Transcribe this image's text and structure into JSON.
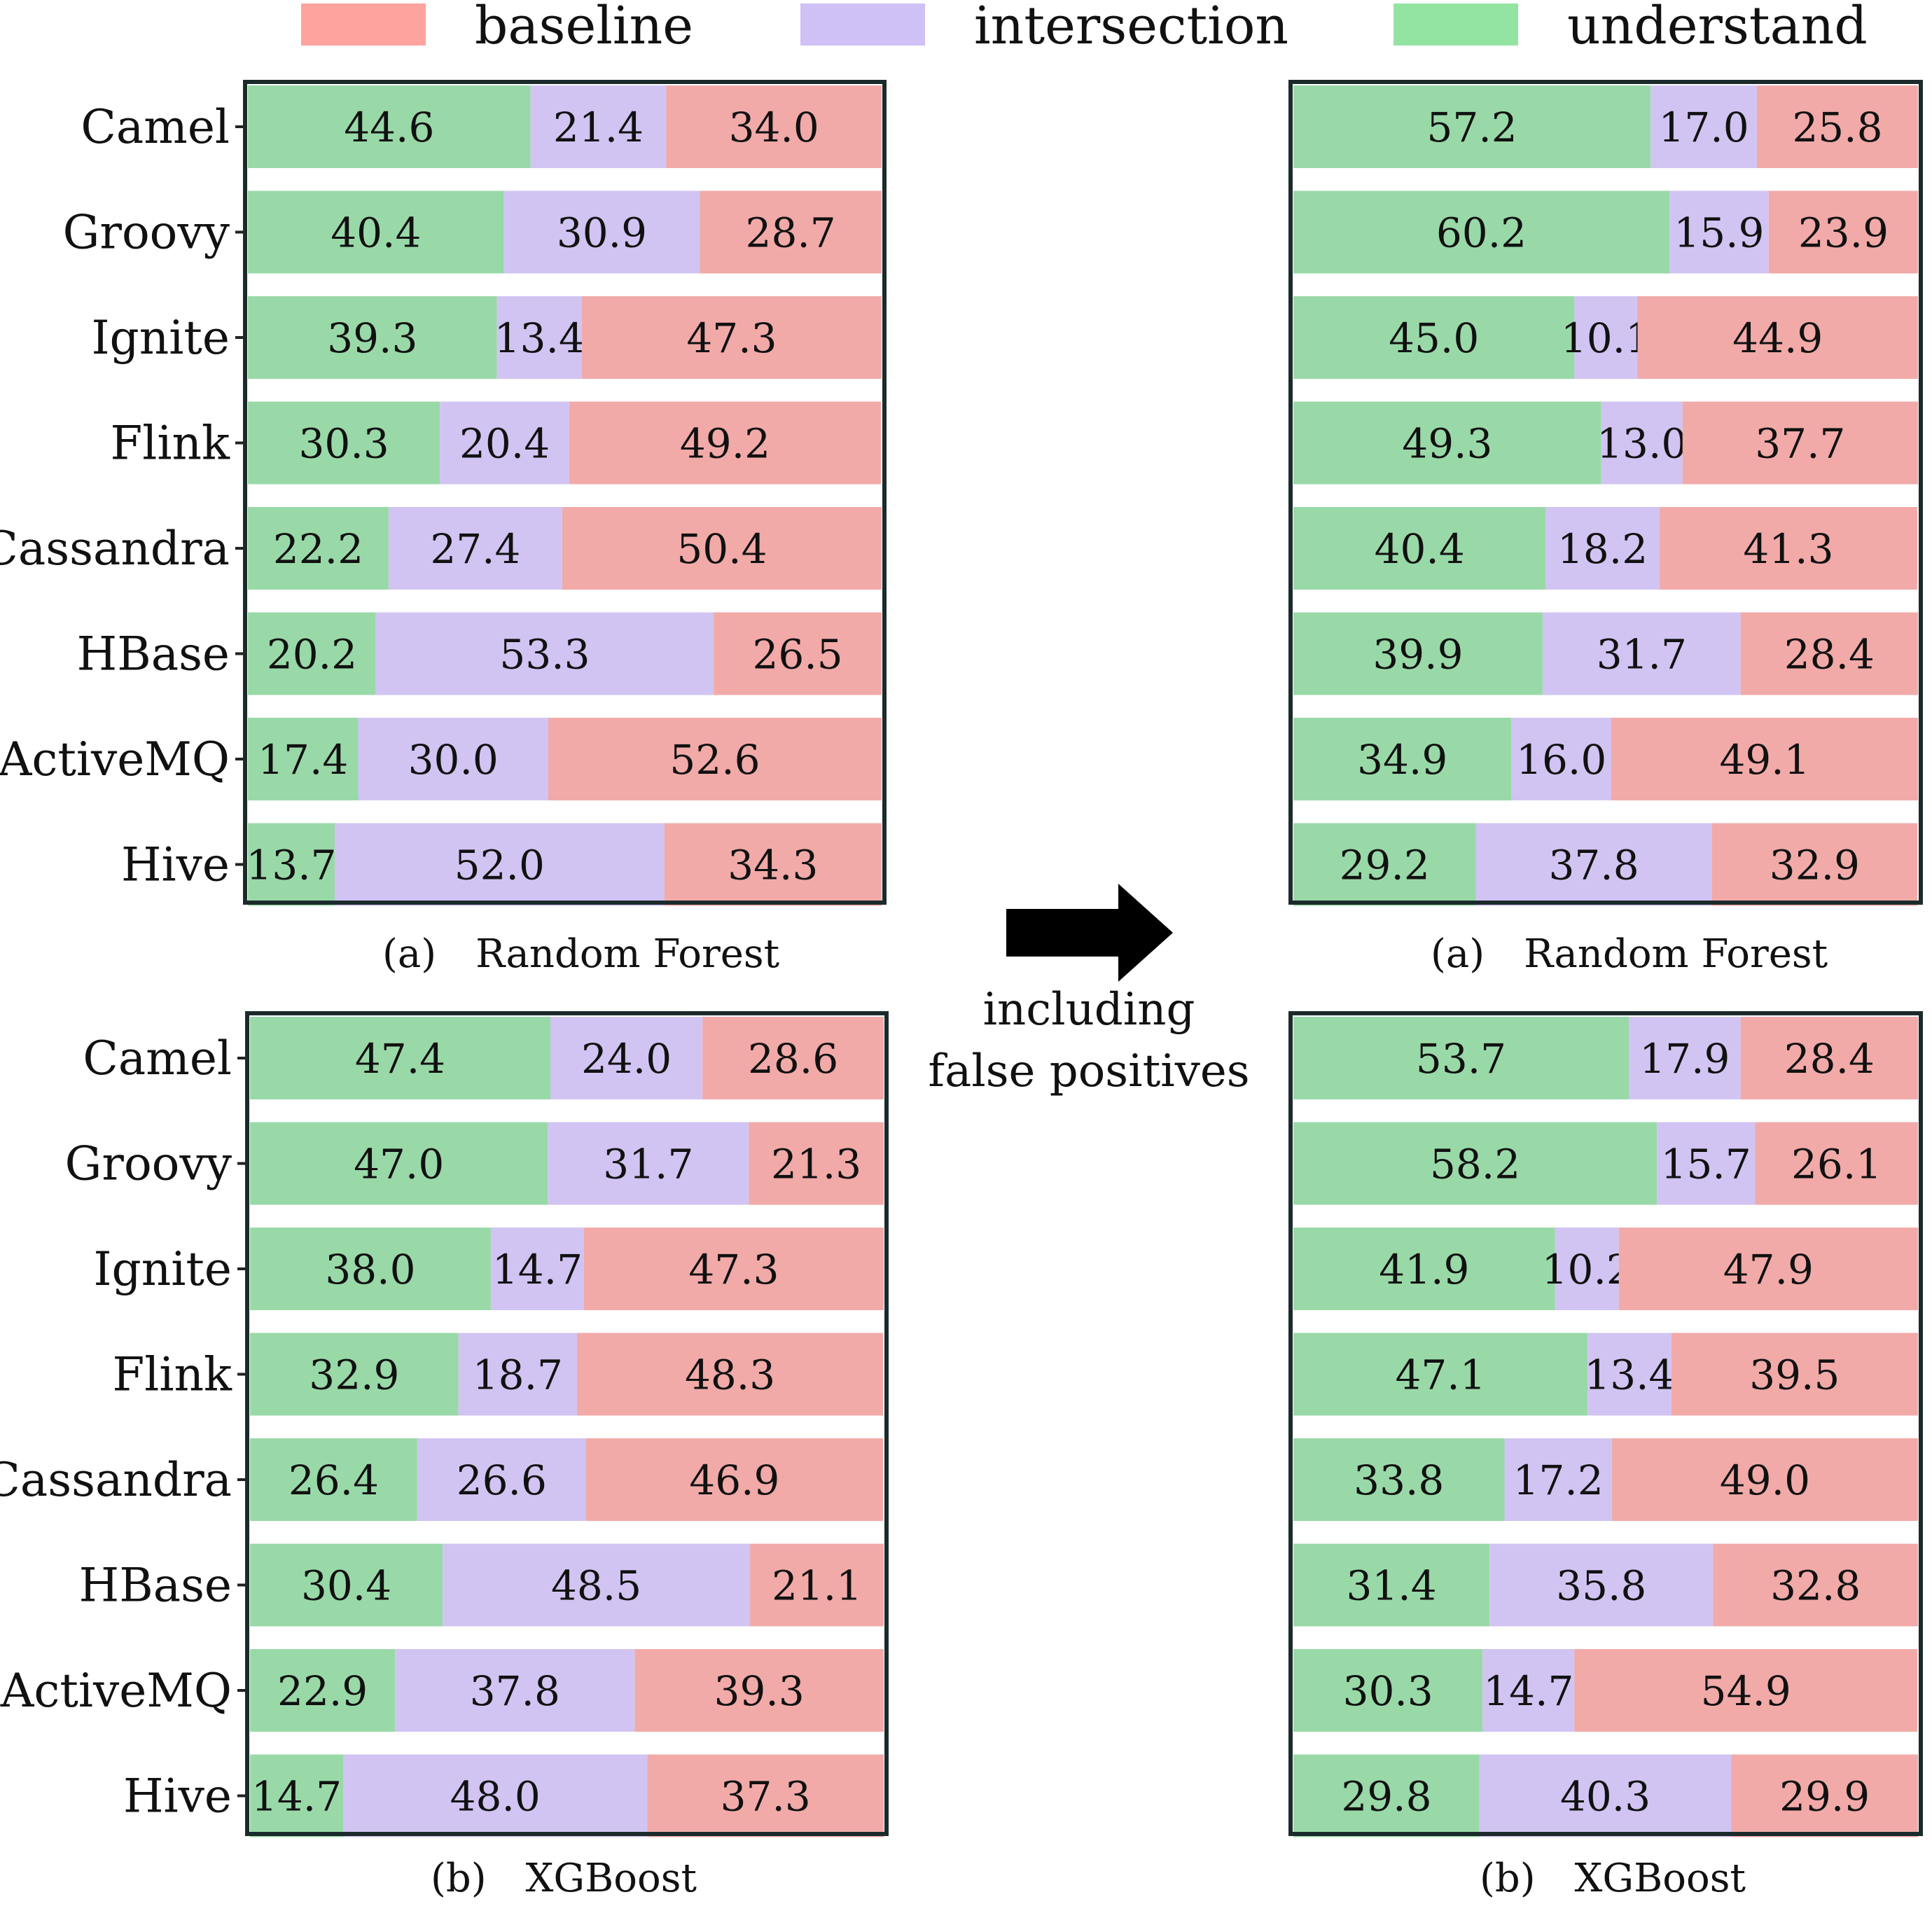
{
  "legend": {
    "items": [
      {
        "label": "baseline",
        "color": "#ffa39e"
      },
      {
        "label": "intersection",
        "color": "#cfc0f5"
      },
      {
        "label": "understand",
        "color": "#93e4a2"
      }
    ]
  },
  "colors": {
    "understand": "#99d9a8",
    "intersection": "#d1c4f2",
    "baseline": "#f1aaa8",
    "frame": "#1b2b2b"
  },
  "annotation": {
    "line1": "including",
    "line2": "false positives",
    "arrow_icon": "right-arrow-icon"
  },
  "chart_data": [
    {
      "type": "bar",
      "orientation": "horizontal",
      "stacked": true,
      "normalized_percent": true,
      "caption_tag": "(a)",
      "caption_title": "Random Forest",
      "categories": [
        "Camel",
        "Groovy",
        "Ignite",
        "Flink",
        "Cassandra",
        "HBase",
        "ActiveMQ",
        "Hive"
      ],
      "series": [
        {
          "name": "understand",
          "values": [
            44.6,
            40.4,
            39.3,
            30.3,
            22.2,
            20.2,
            17.4,
            13.7
          ]
        },
        {
          "name": "intersection",
          "values": [
            21.4,
            30.9,
            13.4,
            20.4,
            27.4,
            53.3,
            30.0,
            52.0
          ]
        },
        {
          "name": "baseline",
          "values": [
            34.0,
            28.7,
            47.3,
            49.2,
            50.4,
            26.5,
            52.6,
            34.3
          ]
        }
      ],
      "xlim": [
        0,
        100
      ]
    },
    {
      "type": "bar",
      "orientation": "horizontal",
      "stacked": true,
      "normalized_percent": true,
      "caption_tag": "(a)",
      "caption_title": "Random Forest",
      "categories": [
        "Camel",
        "Groovy",
        "Ignite",
        "Flink",
        "Cassandra",
        "HBase",
        "ActiveMQ",
        "Hive"
      ],
      "series": [
        {
          "name": "understand",
          "values": [
            57.2,
            60.2,
            45.0,
            49.3,
            40.4,
            39.9,
            34.9,
            29.2
          ]
        },
        {
          "name": "intersection",
          "values": [
            17.0,
            15.9,
            10.1,
            13.0,
            18.2,
            31.7,
            16.0,
            37.8
          ]
        },
        {
          "name": "baseline",
          "values": [
            25.8,
            23.9,
            44.9,
            37.7,
            41.3,
            28.4,
            49.1,
            32.9
          ]
        }
      ],
      "xlim": [
        0,
        100
      ]
    },
    {
      "type": "bar",
      "orientation": "horizontal",
      "stacked": true,
      "normalized_percent": true,
      "caption_tag": "(b)",
      "caption_title": "XGBoost",
      "categories": [
        "Camel",
        "Groovy",
        "Ignite",
        "Flink",
        "Cassandra",
        "HBase",
        "ActiveMQ",
        "Hive"
      ],
      "series": [
        {
          "name": "understand",
          "values": [
            47.4,
            47.0,
            38.0,
            32.9,
            26.4,
            30.4,
            22.9,
            14.7
          ]
        },
        {
          "name": "intersection",
          "values": [
            24.0,
            31.7,
            14.7,
            18.7,
            26.6,
            48.5,
            37.8,
            48.0
          ]
        },
        {
          "name": "baseline",
          "values": [
            28.6,
            21.3,
            47.3,
            48.3,
            46.9,
            21.1,
            39.3,
            37.3
          ]
        }
      ],
      "xlim": [
        0,
        100
      ]
    },
    {
      "type": "bar",
      "orientation": "horizontal",
      "stacked": true,
      "normalized_percent": true,
      "caption_tag": "(b)",
      "caption_title": "XGBoost",
      "categories": [
        "Camel",
        "Groovy",
        "Ignite",
        "Flink",
        "Cassandra",
        "HBase",
        "ActiveMQ",
        "Hive"
      ],
      "series": [
        {
          "name": "understand",
          "values": [
            53.7,
            58.2,
            41.9,
            47.1,
            33.8,
            31.4,
            30.3,
            29.8
          ]
        },
        {
          "name": "intersection",
          "values": [
            17.9,
            15.7,
            10.2,
            13.4,
            17.2,
            35.8,
            14.7,
            40.3
          ]
        },
        {
          "name": "baseline",
          "values": [
            28.4,
            26.1,
            47.9,
            39.5,
            49.0,
            32.8,
            54.9,
            29.9
          ]
        }
      ],
      "xlim": [
        0,
        100
      ]
    }
  ]
}
